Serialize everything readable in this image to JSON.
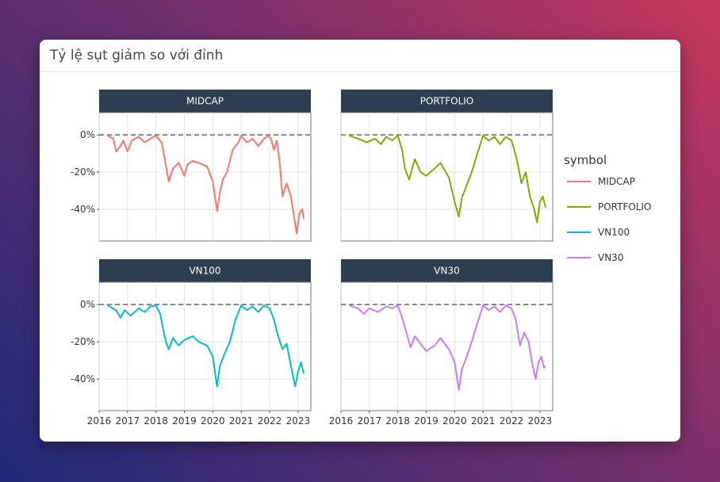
{
  "card": {
    "title": "Tỷ lệ sụt giảm so với đỉnh"
  },
  "chart_data": {
    "type": "line",
    "facet_by": "symbol",
    "legend": {
      "title": "symbol",
      "position": "right"
    },
    "x_tick_labels": [
      "2016",
      "2017",
      "2018",
      "2019",
      "2020",
      "2021",
      "2022",
      "2023"
    ],
    "y_tick_labels": [
      "0%",
      "-20%",
      "-40%"
    ],
    "xlim": [
      2016.0,
      2023.45
    ],
    "ylim": [
      -0.57,
      0.12
    ],
    "grid": true,
    "reference_line": {
      "y": 0,
      "style": "dashed"
    },
    "series": [
      {
        "name": "MIDCAP",
        "color": "#F8766D",
        "x": [
          2016.3,
          2016.5,
          2016.6,
          2016.75,
          2016.85,
          2017.0,
          2017.15,
          2017.4,
          2017.6,
          2017.8,
          2018.0,
          2018.2,
          2018.3,
          2018.45,
          2018.6,
          2018.8,
          2019.0,
          2019.1,
          2019.3,
          2019.5,
          2019.8,
          2020.0,
          2020.15,
          2020.25,
          2020.35,
          2020.5,
          2020.7,
          2020.9,
          2021.0,
          2021.2,
          2021.4,
          2021.6,
          2021.8,
          2021.95,
          2022.05,
          2022.15,
          2022.25,
          2022.35,
          2022.45,
          2022.6,
          2022.75,
          2022.85,
          2022.95,
          2023.05,
          2023.15,
          2023.2
        ],
        "y": [
          -0.005,
          -0.02,
          -0.09,
          -0.06,
          -0.03,
          -0.09,
          -0.03,
          -0.01,
          -0.04,
          -0.02,
          -0.005,
          -0.04,
          -0.12,
          -0.25,
          -0.18,
          -0.15,
          -0.22,
          -0.16,
          -0.14,
          -0.15,
          -0.17,
          -0.25,
          -0.41,
          -0.31,
          -0.24,
          -0.2,
          -0.08,
          -0.04,
          -0.005,
          -0.04,
          -0.02,
          -0.06,
          -0.02,
          -0.005,
          -0.02,
          -0.08,
          -0.03,
          -0.14,
          -0.33,
          -0.26,
          -0.33,
          -0.43,
          -0.53,
          -0.42,
          -0.4,
          -0.45
        ]
      },
      {
        "name": "PORTFOLIO",
        "color": "#7CAE00",
        "x": [
          2016.3,
          2016.6,
          2016.9,
          2017.2,
          2017.4,
          2017.6,
          2017.8,
          2018.0,
          2018.15,
          2018.25,
          2018.4,
          2018.6,
          2018.8,
          2019.0,
          2019.3,
          2019.5,
          2019.8,
          2020.0,
          2020.15,
          2020.25,
          2020.4,
          2020.6,
          2020.8,
          2021.0,
          2021.2,
          2021.4,
          2021.6,
          2021.8,
          2022.0,
          2022.1,
          2022.2,
          2022.35,
          2022.5,
          2022.65,
          2022.8,
          2022.9,
          2023.0,
          2023.1,
          2023.2
        ],
        "y": [
          -0.005,
          -0.02,
          -0.04,
          -0.02,
          -0.05,
          -0.01,
          -0.03,
          -0.005,
          -0.08,
          -0.18,
          -0.24,
          -0.13,
          -0.2,
          -0.22,
          -0.18,
          -0.15,
          -0.23,
          -0.36,
          -0.44,
          -0.34,
          -0.28,
          -0.2,
          -0.1,
          -0.005,
          -0.03,
          -0.01,
          -0.05,
          -0.01,
          -0.03,
          -0.08,
          -0.14,
          -0.26,
          -0.2,
          -0.33,
          -0.4,
          -0.47,
          -0.36,
          -0.33,
          -0.39
        ]
      },
      {
        "name": "VN100",
        "color": "#00BFC4",
        "x": [
          2016.3,
          2016.6,
          2016.75,
          2016.9,
          2017.1,
          2017.4,
          2017.6,
          2017.8,
          2018.0,
          2018.15,
          2018.25,
          2018.35,
          2018.45,
          2018.6,
          2018.8,
          2019.0,
          2019.3,
          2019.5,
          2019.8,
          2020.0,
          2020.15,
          2020.25,
          2020.4,
          2020.6,
          2020.8,
          2021.0,
          2021.2,
          2021.4,
          2021.6,
          2021.8,
          2022.0,
          2022.15,
          2022.3,
          2022.45,
          2022.6,
          2022.75,
          2022.9,
          2023.0,
          2023.1,
          2023.2
        ],
        "y": [
          -0.005,
          -0.03,
          -0.07,
          -0.03,
          -0.06,
          -0.02,
          -0.04,
          -0.01,
          -0.005,
          -0.05,
          -0.13,
          -0.2,
          -0.24,
          -0.18,
          -0.22,
          -0.19,
          -0.17,
          -0.2,
          -0.22,
          -0.28,
          -0.44,
          -0.33,
          -0.27,
          -0.2,
          -0.08,
          -0.005,
          -0.03,
          -0.01,
          -0.04,
          -0.005,
          -0.02,
          -0.08,
          -0.17,
          -0.24,
          -0.21,
          -0.33,
          -0.44,
          -0.36,
          -0.31,
          -0.37
        ]
      },
      {
        "name": "VN30",
        "color": "#C77CFF",
        "x": [
          2016.3,
          2016.6,
          2016.8,
          2017.0,
          2017.3,
          2017.6,
          2017.8,
          2018.0,
          2018.15,
          2018.3,
          2018.45,
          2018.6,
          2018.8,
          2019.0,
          2019.3,
          2019.5,
          2019.8,
          2020.0,
          2020.15,
          2020.25,
          2020.4,
          2020.6,
          2020.8,
          2021.0,
          2021.2,
          2021.4,
          2021.6,
          2021.8,
          2022.0,
          2022.15,
          2022.3,
          2022.45,
          2022.6,
          2022.75,
          2022.85,
          2022.95,
          2023.05,
          2023.15,
          2023.2
        ],
        "y": [
          -0.005,
          -0.02,
          -0.05,
          -0.02,
          -0.04,
          -0.01,
          -0.02,
          -0.005,
          -0.07,
          -0.15,
          -0.23,
          -0.17,
          -0.21,
          -0.25,
          -0.22,
          -0.18,
          -0.24,
          -0.31,
          -0.46,
          -0.35,
          -0.29,
          -0.2,
          -0.1,
          -0.005,
          -0.03,
          -0.01,
          -0.04,
          -0.005,
          -0.02,
          -0.08,
          -0.22,
          -0.15,
          -0.2,
          -0.33,
          -0.4,
          -0.31,
          -0.28,
          -0.34,
          -0.33
        ]
      }
    ]
  }
}
